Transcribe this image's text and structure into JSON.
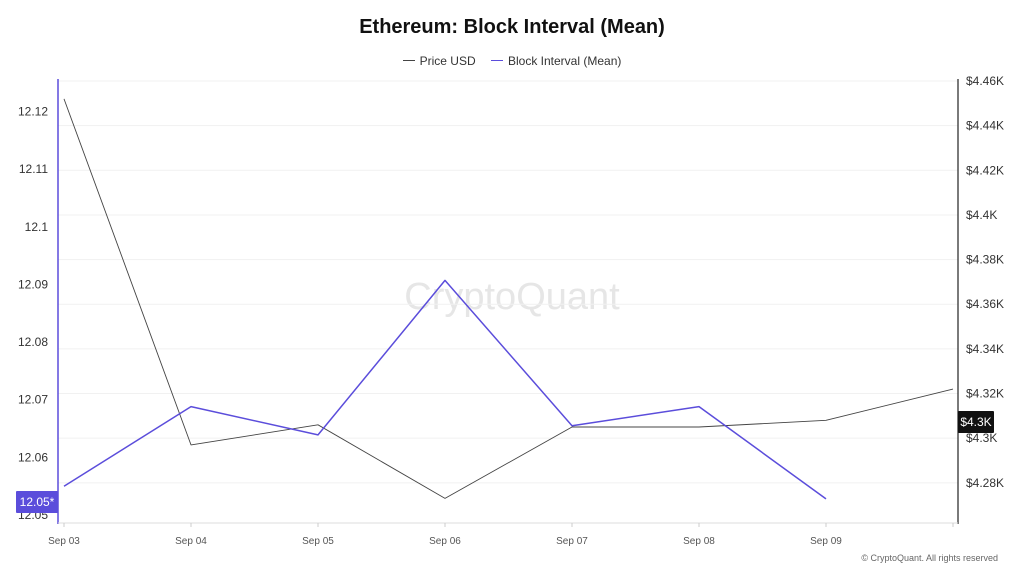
{
  "chart_data": {
    "type": "line",
    "title": "Ethereum: Block Interval (Mean)",
    "categories": [
      "Sep 03",
      "Sep 04",
      "Sep 05",
      "Sep 06",
      "Sep 07",
      "Sep 08",
      "Sep 09",
      ""
    ],
    "series": [
      {
        "name": "Price USD",
        "axis": "right",
        "color": "#444444",
        "values": [
          4452,
          4297,
          4306,
          4273,
          4305,
          4305,
          4308,
          4322
        ]
      },
      {
        "name": "Block Interval (Mean)",
        "axis": "left",
        "color": "#5b4ddb",
        "values": [
          12.055,
          12.0688,
          12.0639,
          12.0907,
          12.0655,
          12.0688,
          12.0528,
          null
        ]
      }
    ],
    "left_axis": {
      "ticks": [
        "12.12",
        "12.11",
        "12.1",
        "12.09",
        "12.08",
        "12.07",
        "12.06",
        "12.05"
      ],
      "range": [
        12.05,
        12.122
      ]
    },
    "right_axis": {
      "ticks": [
        "$4.46K",
        "$4.44K",
        "$4.42K",
        "$4.4K",
        "$4.38K",
        "$4.36K",
        "$4.34K",
        "$4.32K",
        "$4.3K",
        "$4.28K"
      ],
      "range": [
        4262,
        4460
      ]
    },
    "left_badge": "12.05*",
    "right_badge": "$4.3K",
    "watermark": "CryptoQuant",
    "copyright": "© CryptoQuant. All rights reserved",
    "legend_position": "top-center"
  }
}
